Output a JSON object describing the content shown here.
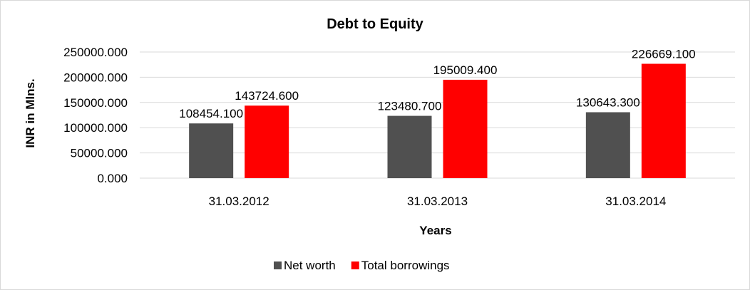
{
  "chart_data": {
    "type": "bar",
    "title": "Debt to Equity",
    "xlabel": "Years",
    "ylabel": "INR in Mlns.",
    "categories": [
      "31.03.2012",
      "31.03.2013",
      "31.03.2014"
    ],
    "series": [
      {
        "name": "Net worth",
        "color": "#505050",
        "values": [
          108454.1,
          123480.7,
          130643.3
        ],
        "labels": [
          "108454.100",
          "123480.700",
          "130643.300"
        ]
      },
      {
        "name": "Total borrowings",
        "color": "#ff0000",
        "values": [
          143724.6,
          195009.4,
          226669.1
        ],
        "labels": [
          "143724.600",
          "195009.400",
          "226669.100"
        ]
      }
    ],
    "ylim": [
      0,
      250000
    ],
    "yticks": [
      0,
      50000,
      100000,
      150000,
      200000,
      250000
    ],
    "ytick_labels": [
      "0.000",
      "50000.000",
      "100000.000",
      "150000.000",
      "200000.000",
      "250000.000"
    ],
    "grid": true,
    "gridline_color": "#d9d9d9",
    "legend_position": "bottom"
  }
}
